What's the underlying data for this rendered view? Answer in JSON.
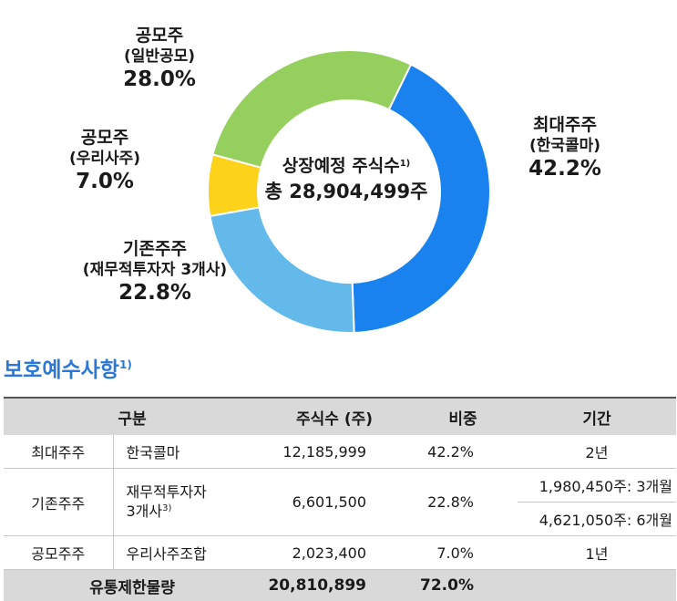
{
  "chart_data": {
    "type": "pie",
    "center_title": "상장예정 주식수",
    "center_title_sup": "1)",
    "center_value": "총 28,904,499주",
    "slices": [
      {
        "name": "최대주주",
        "sub": "(한국콜마)",
        "value": 42.2,
        "label": "42.2%",
        "color": "#1a82ee"
      },
      {
        "name": "기존주주",
        "sub": "(재무적투자자 3개사)",
        "value": 22.8,
        "label": "22.8%",
        "color": "#63b9ea"
      },
      {
        "name": "공모주",
        "sub": "(우리사주)",
        "value": 7.0,
        "label": "7.0%",
        "color": "#fcd21a"
      },
      {
        "name": "공모주",
        "sub": "(일반공모)",
        "value": 28.0,
        "label": "28.0%",
        "color": "#95cf5e"
      }
    ]
  },
  "section": {
    "title": "보호예수사항",
    "title_sup": "1)"
  },
  "table": {
    "headers": [
      "구분",
      "주식수 (주)",
      "비중",
      "기간"
    ],
    "rows": [
      {
        "group": "최대주주",
        "detail": "한국콜마",
        "shares": "12,185,999",
        "pct": "42.2%",
        "period": "2년"
      },
      {
        "group": "기존주주",
        "detail": "재무적투자자",
        "detail2": "3개사",
        "detail2_sup": "3)",
        "shares": "6,601,500",
        "pct": "22.8%",
        "period": "1,980,450주: 3개월",
        "period2": "4,621,050주: 6개월"
      },
      {
        "group": "공모주주",
        "detail": "우리사주조합",
        "shares": "2,023,400",
        "pct": "7.0%",
        "period": "1년"
      }
    ],
    "total": {
      "label": "유통제한물량",
      "shares": "20,810,899",
      "pct": "72.0%"
    }
  }
}
